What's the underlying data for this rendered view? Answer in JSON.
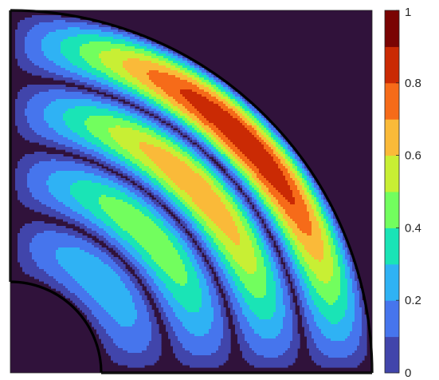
{
  "chart_data": {
    "type": "heatmap",
    "title": "",
    "xlabel": "",
    "ylabel": "",
    "description_values": {
      "domain": "quarter annulus",
      "inner_radius_fraction": 0.25,
      "outer_radius_fraction": 1.0,
      "radial_lobes": 4,
      "angular_modes": 1,
      "peak_value": 1.0,
      "min_value": 0.0,
      "contour_levels": [
        0,
        0.1,
        0.2,
        0.3,
        0.4,
        0.5,
        0.6,
        0.7,
        0.8,
        0.9,
        1.0
      ]
    },
    "colorbar": {
      "min": 0,
      "max": 1,
      "ticks": [
        "0",
        "0.2",
        "0.4",
        "0.6",
        "0.8",
        "1"
      ],
      "tick_values": [
        0,
        0.2,
        0.4,
        0.6,
        0.8,
        1
      ],
      "colormap": "turbo"
    },
    "colors": {
      "background": "#30123b",
      "boundary": "#000000",
      "level_colors": [
        "#30123b",
        "#4145ab",
        "#4675ed",
        "#2fb2f4",
        "#1ae4b6",
        "#72fe5e",
        "#c8ef34",
        "#faba39",
        "#f66b19",
        "#ca2a04",
        "#7a0403"
      ]
    }
  }
}
